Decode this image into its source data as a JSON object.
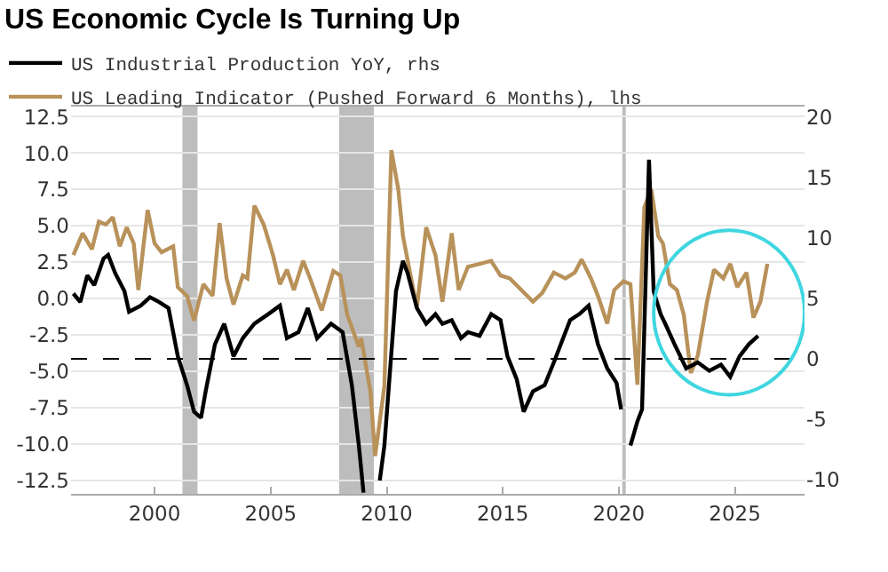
{
  "chart_data": {
    "type": "line",
    "title": "US Economic Cycle Is Turning Up",
    "xlim": [
      1996.4,
      2028
    ],
    "xticks": [
      2000,
      2005,
      2010,
      2015,
      2020,
      2025
    ],
    "ylim": [
      -13.4,
      13.2
    ],
    "yticks": [
      {
        "value": -12.5,
        "label": "-12.5"
      },
      {
        "value": -10,
        "label": "-10.0"
      },
      {
        "value": -7.5,
        "label": "-7.5"
      },
      {
        "value": -5,
        "label": "-5.0"
      },
      {
        "value": -2.5,
        "label": "-2.5"
      },
      {
        "value": 0,
        "label": "0.0"
      },
      {
        "value": 2.5,
        "label": "2.5"
      },
      {
        "value": 5,
        "label": "5.0"
      },
      {
        "value": 7.5,
        "label": "7.5"
      },
      {
        "value": 10,
        "label": "10.0"
      },
      {
        "value": 12.5,
        "label": "12.5"
      }
    ],
    "y2lim": [
      -11.2,
      20.9
    ],
    "y2ticks": [
      -10,
      -5,
      0,
      5,
      10,
      15,
      20
    ],
    "grid": "y",
    "legend": "top left",
    "marker": "none",
    "line_style": "solid",
    "series": [
      {
        "name": "US Industrial Production YoY, rhs",
        "color": "#000000",
        "axis": "y2",
        "x": [
          1996.5,
          1996.8,
          1997.1,
          1997.4,
          1997.8,
          1998.0,
          1998.3,
          1998.7,
          1998.9,
          1999.4,
          1999.8,
          2000.2,
          2000.6,
          2001.0,
          2001.4,
          2001.7,
          2002.0,
          2002.2,
          2002.6,
          2003.0,
          2003.4,
          2003.8,
          2004.3,
          2004.9,
          2005.4,
          2005.7,
          2006.2,
          2006.6,
          2007.0,
          2007.6,
          2008.1,
          2008.5,
          2008.8,
          2009.0,
          2009.3,
          2009.7,
          2009.9,
          2010.4,
          2010.7,
          2010.9,
          2011.3,
          2011.7,
          2012.1,
          2012.4,
          2012.8,
          2013.2,
          2013.5,
          2014.0,
          2014.5,
          2014.9,
          2015.2,
          2015.6,
          2015.9,
          2016.3,
          2016.8,
          2017.2,
          2017.6,
          2017.9,
          2018.3,
          2018.7,
          2019.1,
          2019.5,
          2019.9,
          2020.1,
          2020.2,
          2020.5,
          2020.8,
          2021.0,
          2021.3,
          2021.5,
          2021.8,
          2022.0,
          2022.4,
          2022.9,
          2023.4,
          2023.9,
          2024.4,
          2024.8,
          2025.2,
          2025.6,
          2026.0
        ],
        "values": [
          5.4,
          4.7,
          6.9,
          6.1,
          8.3,
          8.6,
          7.1,
          5.6,
          3.9,
          4.4,
          5.1,
          4.7,
          4.2,
          0.2,
          -2.2,
          -4.4,
          -4.9,
          -2.7,
          1.2,
          2.9,
          0.2,
          1.7,
          2.9,
          3.7,
          4.4,
          1.7,
          2.2,
          4.2,
          1.7,
          2.9,
          2.2,
          -2.2,
          -7.2,
          -11.1,
          null,
          -10.1,
          -7.2,
          5.6,
          8.1,
          7.1,
          4.2,
          2.9,
          3.7,
          2.9,
          3.2,
          1.7,
          2.2,
          1.9,
          3.7,
          3.2,
          0.2,
          -1.7,
          -4.4,
          -2.7,
          -2.2,
          -0.3,
          1.7,
          3.2,
          3.7,
          4.4,
          1.2,
          -0.8,
          -2.0,
          -4.2,
          null,
          -7.2,
          -5.2,
          -4.2,
          16.5,
          5.6,
          3.7,
          2.9,
          1.2,
          -0.8,
          -0.3,
          -1.0,
          -0.5,
          -1.5,
          0.2,
          1.2,
          1.9
        ]
      },
      {
        "name": "US Leading Indicator (Pushed Forward 6 Months), lhs",
        "color": "#b8925a",
        "x": [
          1996.5,
          1996.9,
          1997.3,
          1997.6,
          1997.9,
          1998.2,
          1998.5,
          1998.8,
          1999.1,
          1999.3,
          1999.7,
          2000.0,
          2000.3,
          2000.8,
          2001.0,
          2001.4,
          2001.7,
          2002.1,
          2002.5,
          2002.8,
          2003.1,
          2003.4,
          2003.8,
          2004.0,
          2004.3,
          2004.7,
          2005.1,
          2005.4,
          2005.7,
          2006.0,
          2006.4,
          2006.7,
          2007.2,
          2007.7,
          2008.0,
          2008.3,
          2008.8,
          2008.9,
          2009.3,
          2009.5,
          2009.9,
          2010.2,
          2010.5,
          2010.7,
          2011.1,
          2011.3,
          2011.7,
          2012.1,
          2012.4,
          2012.8,
          2013.1,
          2013.5,
          2014.0,
          2014.5,
          2014.9,
          2015.3,
          2015.8,
          2016.3,
          2016.7,
          2017.2,
          2017.7,
          2018.1,
          2018.4,
          2018.8,
          2019.1,
          2019.5,
          2019.8,
          2020.2,
          2020.5,
          2020.8,
          2021.1,
          2021.4,
          2021.7,
          2021.9,
          2022.2,
          2022.5,
          2022.8,
          2023.1,
          2023.4,
          2023.8,
          2024.1,
          2024.5,
          2024.8,
          2025.1,
          2025.5,
          2025.8,
          2026.1,
          2026.4
        ],
        "values": [
          3.0,
          4.5,
          3.4,
          5.3,
          5.1,
          5.6,
          3.6,
          4.9,
          3.8,
          0.6,
          6.1,
          3.8,
          3.2,
          3.6,
          0.8,
          0.2,
          -1.5,
          1.0,
          0.2,
          5.2,
          1.4,
          -0.4,
          1.6,
          1.4,
          6.4,
          5.1,
          3.0,
          1.0,
          2.0,
          0.6,
          2.6,
          1.4,
          -0.8,
          1.9,
          1.6,
          -1.1,
          -3.3,
          -2.7,
          -6.4,
          -10.8,
          -6.0,
          10.2,
          7.5,
          4.3,
          1.0,
          -0.6,
          4.9,
          3.0,
          -0.2,
          4.5,
          0.6,
          2.2,
          2.4,
          2.6,
          1.6,
          1.4,
          0.6,
          -0.2,
          0.4,
          1.8,
          1.4,
          1.8,
          2.7,
          1.4,
          0.2,
          -1.7,
          0.6,
          1.2,
          1.0,
          -5.9,
          6.3,
          7.5,
          4.3,
          3.8,
          1.0,
          0.6,
          -1.1,
          -5.1,
          -3.9,
          -0.2,
          2.0,
          1.4,
          2.4,
          0.8,
          1.8,
          -1.3,
          -0.2,
          2.4
        ]
      }
    ],
    "ref_lines": [
      {
        "axis": "y2",
        "value": 0,
        "color": "#000000",
        "line_style": "dashed"
      }
    ],
    "bands": [
      {
        "axis": "x",
        "from": 2001.2,
        "to": 2001.85,
        "color": "#bdbdbd"
      },
      {
        "axis": "x",
        "from": 2007.95,
        "to": 2009.45,
        "color": "#bdbdbd"
      },
      {
        "axis": "x",
        "from": 2020.15,
        "to": 2020.3,
        "color": "#bdbdbd"
      }
    ]
  }
}
